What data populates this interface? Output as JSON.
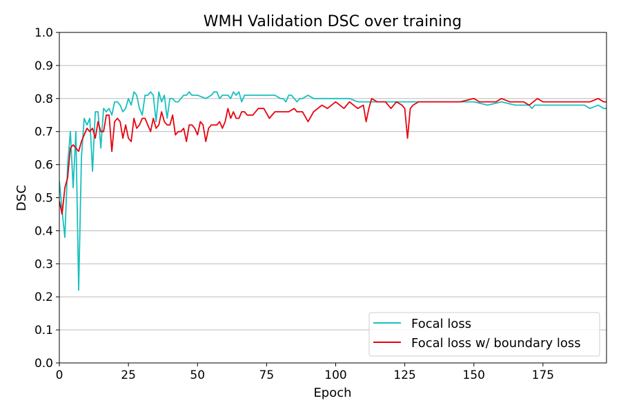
{
  "chart_data": {
    "type": "line",
    "title": "WMH Validation DSC over training",
    "xlabel": "Epoch",
    "ylabel": "DSC",
    "xlim": [
      0,
      198
    ],
    "ylim": [
      0.0,
      1.0
    ],
    "grid": "horizontal",
    "legend_position": "bottom-right",
    "x_ticks": [
      0,
      25,
      50,
      75,
      100,
      125,
      150,
      175
    ],
    "x_tick_labels": [
      "0",
      "25",
      "50",
      "75",
      "100",
      "125",
      "150",
      "175"
    ],
    "y_ticks": [
      0.0,
      0.1,
      0.2,
      0.3,
      0.4,
      0.5,
      0.6,
      0.7,
      0.8,
      0.9,
      1.0
    ],
    "y_tick_labels": [
      "0.0",
      "0.1",
      "0.2",
      "0.3",
      "0.4",
      "0.5",
      "0.6",
      "0.7",
      "0.8",
      "0.9",
      "1.0"
    ],
    "series": [
      {
        "name": "Focal loss",
        "color": "#17bfbf",
        "x": [
          0,
          1,
          2,
          3,
          4,
          5,
          6,
          7,
          8,
          9,
          10,
          11,
          12,
          13,
          14,
          15,
          16,
          17,
          18,
          19,
          20,
          21,
          22,
          23,
          24,
          25,
          26,
          27,
          28,
          29,
          30,
          31,
          32,
          33,
          34,
          35,
          36,
          37,
          38,
          39,
          40,
          41,
          42,
          43,
          44,
          45,
          46,
          47,
          48,
          50,
          53,
          55,
          56,
          57,
          58,
          59,
          60,
          61,
          62,
          63,
          64,
          65,
          66,
          67,
          70,
          72,
          75,
          78,
          80,
          81,
          82,
          83,
          84,
          85,
          86,
          87,
          88,
          90,
          92,
          95,
          98,
          100,
          103,
          105,
          108,
          110,
          112,
          115,
          118,
          120,
          125,
          130,
          135,
          140,
          145,
          150,
          155,
          160,
          165,
          170,
          171,
          172,
          173,
          175,
          178,
          180,
          185,
          190,
          192,
          195,
          197,
          198
        ],
        "values": [
          0.55,
          0.46,
          0.38,
          0.6,
          0.7,
          0.53,
          0.7,
          0.22,
          0.62,
          0.74,
          0.72,
          0.74,
          0.58,
          0.76,
          0.76,
          0.65,
          0.77,
          0.76,
          0.77,
          0.75,
          0.79,
          0.79,
          0.78,
          0.76,
          0.77,
          0.8,
          0.78,
          0.82,
          0.81,
          0.77,
          0.75,
          0.81,
          0.81,
          0.82,
          0.81,
          0.73,
          0.82,
          0.79,
          0.81,
          0.74,
          0.8,
          0.8,
          0.79,
          0.79,
          0.8,
          0.81,
          0.81,
          0.82,
          0.81,
          0.81,
          0.8,
          0.81,
          0.82,
          0.82,
          0.8,
          0.81,
          0.81,
          0.81,
          0.8,
          0.82,
          0.81,
          0.82,
          0.79,
          0.81,
          0.81,
          0.81,
          0.81,
          0.81,
          0.8,
          0.8,
          0.79,
          0.81,
          0.81,
          0.8,
          0.79,
          0.8,
          0.8,
          0.81,
          0.8,
          0.8,
          0.8,
          0.8,
          0.8,
          0.8,
          0.79,
          0.79,
          0.79,
          0.79,
          0.79,
          0.79,
          0.79,
          0.79,
          0.79,
          0.79,
          0.79,
          0.79,
          0.78,
          0.79,
          0.78,
          0.78,
          0.77,
          0.78,
          0.78,
          0.78,
          0.78,
          0.78,
          0.78,
          0.78,
          0.77,
          0.78,
          0.77,
          0.77
        ]
      },
      {
        "name": "Focal loss w/ boundary loss",
        "color": "#e8000b",
        "x": [
          0,
          1,
          2,
          3,
          4,
          5,
          6,
          7,
          8,
          9,
          10,
          11,
          12,
          13,
          14,
          15,
          16,
          17,
          18,
          19,
          20,
          21,
          22,
          23,
          24,
          25,
          26,
          27,
          28,
          29,
          30,
          31,
          32,
          33,
          34,
          35,
          36,
          37,
          38,
          39,
          40,
          41,
          42,
          43,
          44,
          45,
          46,
          47,
          48,
          49,
          50,
          51,
          52,
          53,
          54,
          55,
          56,
          57,
          58,
          59,
          60,
          61,
          62,
          63,
          64,
          65,
          66,
          67,
          68,
          70,
          72,
          74,
          76,
          78,
          80,
          83,
          85,
          86,
          87,
          88,
          90,
          92,
          95,
          97,
          100,
          103,
          105,
          108,
          110,
          111,
          112,
          113,
          115,
          118,
          120,
          122,
          124,
          125,
          126,
          127,
          128,
          130,
          133,
          135,
          138,
          140,
          145,
          150,
          152,
          155,
          158,
          160,
          163,
          165,
          168,
          170,
          173,
          175,
          178,
          180,
          185,
          190,
          192,
          195,
          197,
          198
        ],
        "values": [
          0.49,
          0.45,
          0.53,
          0.56,
          0.65,
          0.66,
          0.65,
          0.64,
          0.67,
          0.69,
          0.71,
          0.7,
          0.71,
          0.68,
          0.73,
          0.7,
          0.7,
          0.75,
          0.75,
          0.64,
          0.73,
          0.74,
          0.73,
          0.68,
          0.72,
          0.68,
          0.67,
          0.74,
          0.71,
          0.72,
          0.74,
          0.74,
          0.72,
          0.7,
          0.74,
          0.71,
          0.72,
          0.76,
          0.73,
          0.72,
          0.72,
          0.75,
          0.69,
          0.7,
          0.7,
          0.71,
          0.67,
          0.72,
          0.72,
          0.71,
          0.69,
          0.73,
          0.72,
          0.67,
          0.71,
          0.72,
          0.72,
          0.72,
          0.73,
          0.71,
          0.73,
          0.77,
          0.74,
          0.76,
          0.74,
          0.74,
          0.76,
          0.76,
          0.75,
          0.75,
          0.77,
          0.77,
          0.74,
          0.76,
          0.76,
          0.76,
          0.77,
          0.76,
          0.76,
          0.76,
          0.73,
          0.76,
          0.78,
          0.77,
          0.79,
          0.77,
          0.79,
          0.77,
          0.78,
          0.73,
          0.77,
          0.8,
          0.79,
          0.79,
          0.77,
          0.79,
          0.78,
          0.77,
          0.68,
          0.77,
          0.78,
          0.79,
          0.79,
          0.79,
          0.79,
          0.79,
          0.79,
          0.8,
          0.79,
          0.79,
          0.79,
          0.8,
          0.79,
          0.79,
          0.79,
          0.78,
          0.8,
          0.79,
          0.79,
          0.79,
          0.79,
          0.79,
          0.79,
          0.8,
          0.79,
          0.79
        ]
      }
    ]
  }
}
